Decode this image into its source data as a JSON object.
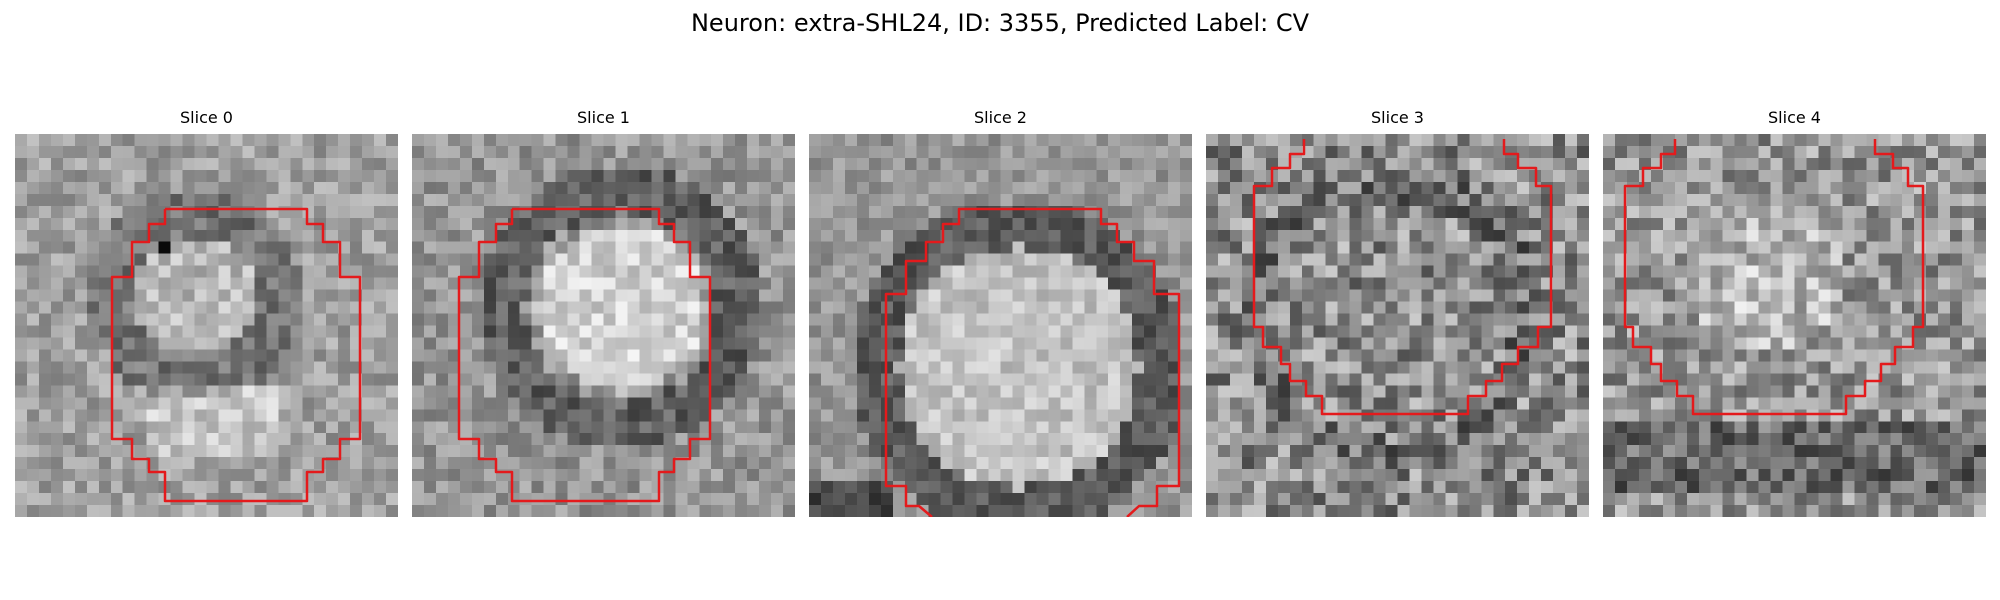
{
  "figure": {
    "title": "Neuron: extra-SHL24, ID: 3355, Predicted Label: CV",
    "contour_color": "#e41a1c"
  },
  "panels": [
    {
      "title": "Slice 0",
      "pattern": "ring-bottom-bright"
    },
    {
      "title": "Slice 1",
      "pattern": "bright-core"
    },
    {
      "title": "Slice 2",
      "pattern": "large-ring"
    },
    {
      "title": "Slice 3",
      "pattern": "noisy"
    },
    {
      "title": "Slice 4",
      "pattern": "noisy-dark-bottom"
    }
  ]
}
